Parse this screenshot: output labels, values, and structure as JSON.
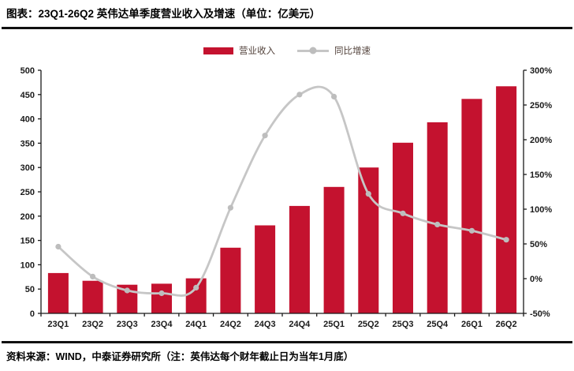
{
  "title": "图表：23Q1-26Q2 英伟达单季度营业收入及增速（单位：亿美元）",
  "footer": "资料来源：WIND，中泰证券研究所（注：英伟达每个财年截止日为当年1月底）",
  "legend": {
    "bar_label": "营业收入",
    "line_label": "同比增速"
  },
  "colors": {
    "bar": "#c4122f",
    "line": "#c6c6c6",
    "marker": "#bdbdbd",
    "axis": "#1a1a1a",
    "legend_text": "#53433c"
  },
  "chart_data": {
    "type": "bar",
    "subtype": "bar-line-combo",
    "title": "23Q1-26Q2 英伟达单季度营业收入及增速（单位：亿美元）",
    "categories": [
      "23Q1",
      "23Q2",
      "23Q3",
      "23Q4",
      "24Q1",
      "24Q2",
      "24Q3",
      "24Q4",
      "25Q1",
      "25Q2",
      "25Q3",
      "25Q4",
      "26Q1",
      "26Q2"
    ],
    "series": [
      {
        "name": "营业收入",
        "type": "bar",
        "axis": "left",
        "values": [
          83,
          67,
          59,
          61,
          72,
          135,
          181,
          221,
          260,
          300,
          351,
          393,
          441,
          467
        ]
      },
      {
        "name": "同比增速",
        "type": "line",
        "axis": "right",
        "values": [
          46,
          3,
          -17,
          -21,
          -13,
          102,
          206,
          265,
          262,
          122,
          94,
          78,
          69,
          56
        ]
      }
    ],
    "left_axis": {
      "min": 0,
      "max": 500,
      "step": 50,
      "suffix": ""
    },
    "right_axis": {
      "min": -50,
      "max": 300,
      "step": 50,
      "suffix": "%"
    },
    "grid": false,
    "legend_position": "top",
    "line_smooth": true
  }
}
